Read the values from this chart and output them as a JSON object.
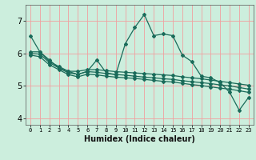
{
  "xlabel": "Humidex (Indice chaleur)",
  "bg_color": "#cceedd",
  "grid_color": "#f0a0a0",
  "line_color": "#1a6b5a",
  "x_values": [
    0,
    1,
    2,
    3,
    4,
    5,
    6,
    7,
    8,
    9,
    10,
    11,
    12,
    13,
    14,
    15,
    16,
    17,
    18,
    19,
    20,
    21,
    22,
    23
  ],
  "line1_y": [
    6.55,
    6.05,
    5.8,
    5.55,
    5.45,
    5.35,
    5.45,
    5.8,
    5.4,
    5.35,
    6.3,
    6.8,
    7.2,
    6.55,
    6.6,
    6.55,
    5.95,
    5.75,
    5.3,
    5.25,
    5.1,
    4.8,
    4.25,
    4.65
  ],
  "line2_y": [
    6.05,
    6.05,
    5.75,
    5.6,
    5.45,
    5.45,
    5.5,
    5.5,
    5.47,
    5.44,
    5.42,
    5.4,
    5.38,
    5.36,
    5.34,
    5.32,
    5.28,
    5.25,
    5.22,
    5.18,
    5.14,
    5.1,
    5.06,
    5.02
  ],
  "line3_y": [
    6.0,
    5.98,
    5.72,
    5.55,
    5.4,
    5.36,
    5.44,
    5.42,
    5.38,
    5.35,
    5.33,
    5.3,
    5.27,
    5.25,
    5.22,
    5.2,
    5.16,
    5.13,
    5.1,
    5.07,
    5.03,
    5.0,
    4.95,
    4.9
  ],
  "line4_y": [
    5.95,
    5.9,
    5.65,
    5.5,
    5.35,
    5.28,
    5.36,
    5.34,
    5.3,
    5.27,
    5.25,
    5.23,
    5.2,
    5.17,
    5.14,
    5.12,
    5.08,
    5.04,
    5.01,
    4.97,
    4.93,
    4.9,
    4.85,
    4.8
  ],
  "ylim": [
    3.8,
    7.5
  ],
  "xlim": [
    -0.5,
    23.5
  ],
  "yticks": [
    4,
    5,
    6,
    7
  ],
  "xticks": [
    0,
    1,
    2,
    3,
    4,
    5,
    6,
    7,
    8,
    9,
    10,
    11,
    12,
    13,
    14,
    15,
    16,
    17,
    18,
    19,
    20,
    21,
    22,
    23
  ]
}
